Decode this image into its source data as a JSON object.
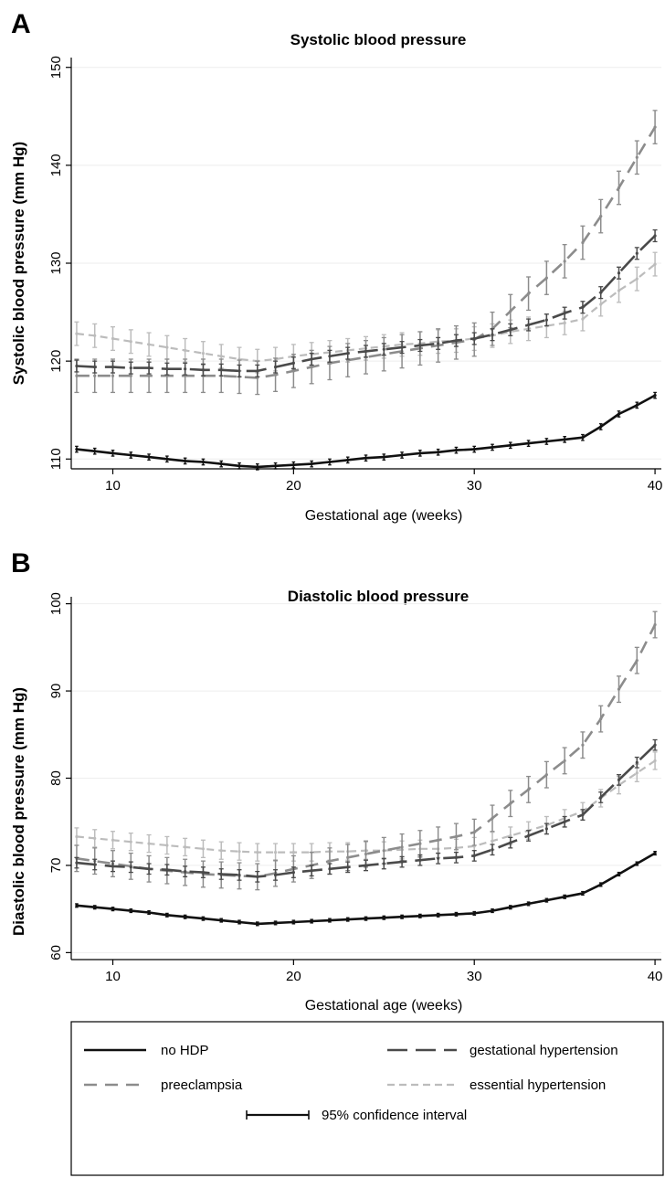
{
  "chart_data": [
    {
      "type": "line",
      "panel": "A",
      "title": "Systolic blood pressure",
      "xlabel": "Gestational age (weeks)",
      "ylabel": "Systolic blood pressure (mm Hg)",
      "xlim": [
        8,
        40
      ],
      "ylim": [
        109,
        151
      ],
      "xticks": [
        10,
        20,
        30,
        40
      ],
      "yticks": [
        110,
        120,
        130,
        140,
        150
      ],
      "grid": true,
      "x": [
        8,
        9,
        10,
        11,
        12,
        13,
        14,
        15,
        16,
        17,
        18,
        19,
        20,
        21,
        22,
        23,
        24,
        25,
        26,
        27,
        28,
        29,
        30,
        31,
        32,
        33,
        34,
        35,
        36,
        37,
        38,
        39,
        40
      ],
      "series": [
        {
          "name": "no HDP",
          "color": "#111111",
          "dash": "solid",
          "ci": 0.3,
          "values": [
            111.0,
            110.8,
            110.6,
            110.4,
            110.2,
            110.0,
            109.8,
            109.7,
            109.5,
            109.3,
            109.2,
            109.3,
            109.4,
            109.5,
            109.7,
            109.9,
            110.1,
            110.2,
            110.4,
            110.6,
            110.7,
            110.9,
            111.0,
            111.2,
            111.4,
            111.6,
            111.8,
            112.0,
            112.2,
            113.3,
            114.6,
            115.5,
            116.5
          ]
        },
        {
          "name": "gestational hypertension",
          "color": "#4a4a4a",
          "dash": "longdash",
          "ci": 0.6,
          "values": [
            119.5,
            119.4,
            119.4,
            119.3,
            119.3,
            119.2,
            119.2,
            119.1,
            119.1,
            119.0,
            119.0,
            119.4,
            119.8,
            120.2,
            120.5,
            120.8,
            121.0,
            121.2,
            121.4,
            121.6,
            121.8,
            122.1,
            122.3,
            122.7,
            123.2,
            123.7,
            124.2,
            124.9,
            125.5,
            127.0,
            129.0,
            131.0,
            132.8
          ]
        },
        {
          "name": "preeclampsia",
          "color": "#8c8c8c",
          "dash": "dash",
          "ci": 1.7,
          "values": [
            118.5,
            118.5,
            118.5,
            118.5,
            118.5,
            118.5,
            118.5,
            118.5,
            118.5,
            118.4,
            118.3,
            118.6,
            119.0,
            119.4,
            119.8,
            120.1,
            120.4,
            120.7,
            121.0,
            121.3,
            121.6,
            121.9,
            122.2,
            123.3,
            125.1,
            126.9,
            128.5,
            130.2,
            132.1,
            134.8,
            137.7,
            140.8,
            143.9
          ]
        },
        {
          "name": "essential hypertension",
          "color": "#bcbcbc",
          "dash": "shortdash",
          "ci": 1.2,
          "values": [
            122.8,
            122.6,
            122.3,
            122.0,
            121.7,
            121.4,
            121.1,
            120.8,
            120.5,
            120.2,
            120.0,
            120.2,
            120.5,
            120.7,
            120.9,
            121.1,
            121.3,
            121.5,
            121.7,
            121.8,
            122.0,
            122.1,
            122.3,
            122.6,
            123.0,
            123.3,
            123.6,
            123.9,
            124.3,
            125.8,
            127.2,
            128.4,
            129.9
          ]
        }
      ]
    },
    {
      "type": "line",
      "panel": "B",
      "title": "Diastolic blood pressure",
      "xlabel": "Gestational age (weeks)",
      "ylabel": "Diastolic blood pressure (mm Hg)",
      "xlim": [
        8,
        40
      ],
      "ylim": [
        59.2,
        100.8
      ],
      "xticks": [
        10,
        20,
        30,
        40
      ],
      "yticks": [
        60,
        70,
        80,
        90,
        100
      ],
      "grid": true,
      "x": [
        8,
        9,
        10,
        11,
        12,
        13,
        14,
        15,
        16,
        17,
        18,
        19,
        20,
        21,
        22,
        23,
        24,
        25,
        26,
        27,
        28,
        29,
        30,
        31,
        32,
        33,
        34,
        35,
        36,
        37,
        38,
        39,
        40
      ],
      "series": [
        {
          "name": "no HDP",
          "color": "#111111",
          "dash": "solid",
          "ci": 0.2,
          "values": [
            65.4,
            65.2,
            65.0,
            64.8,
            64.6,
            64.3,
            64.1,
            63.9,
            63.7,
            63.5,
            63.3,
            63.4,
            63.5,
            63.6,
            63.7,
            63.8,
            63.9,
            64.0,
            64.1,
            64.2,
            64.3,
            64.4,
            64.5,
            64.8,
            65.2,
            65.6,
            66.0,
            66.4,
            66.8,
            67.8,
            69.0,
            70.2,
            71.4
          ]
        },
        {
          "name": "gestational hypertension",
          "color": "#4a4a4a",
          "dash": "longdash",
          "ci": 0.6,
          "values": [
            70.3,
            70.1,
            69.9,
            69.8,
            69.6,
            69.5,
            69.3,
            69.2,
            69.0,
            68.9,
            68.7,
            68.9,
            69.2,
            69.4,
            69.6,
            69.8,
            70.0,
            70.2,
            70.4,
            70.6,
            70.8,
            70.9,
            71.1,
            71.8,
            72.6,
            73.4,
            74.2,
            75.0,
            75.8,
            77.8,
            79.8,
            81.8,
            83.8
          ]
        },
        {
          "name": "preeclampsia",
          "color": "#8c8c8c",
          "dash": "dash",
          "ci": 1.5,
          "values": [
            70.8,
            70.5,
            70.2,
            69.9,
            69.6,
            69.4,
            69.2,
            69.0,
            68.9,
            68.8,
            68.7,
            69.1,
            69.6,
            70.0,
            70.5,
            70.9,
            71.3,
            71.7,
            72.1,
            72.5,
            72.9,
            73.3,
            73.8,
            75.4,
            77.1,
            78.7,
            80.4,
            82.0,
            83.8,
            86.8,
            90.2,
            93.5,
            97.6
          ]
        },
        {
          "name": "essential hypertension",
          "color": "#bcbcbc",
          "dash": "shortdash",
          "ci": 1.0,
          "values": [
            73.3,
            73.1,
            72.9,
            72.7,
            72.5,
            72.3,
            72.1,
            71.9,
            71.7,
            71.6,
            71.5,
            71.5,
            71.5,
            71.5,
            71.6,
            71.6,
            71.7,
            71.7,
            71.8,
            71.9,
            71.9,
            72.0,
            72.2,
            72.8,
            73.4,
            74.0,
            74.6,
            75.4,
            76.2,
            77.7,
            79.2,
            80.6,
            82.0
          ]
        }
      ]
    }
  ],
  "legend": {
    "entries": [
      {
        "label": "no HDP",
        "color": "#111111",
        "dash": "solid"
      },
      {
        "label": "gestational hypertension",
        "color": "#4a4a4a",
        "dash": "longdash"
      },
      {
        "label": "preeclampsia",
        "color": "#8c8c8c",
        "dash": "dash"
      },
      {
        "label": "essential hypertension",
        "color": "#bcbcbc",
        "dash": "shortdash"
      }
    ],
    "ci_label": "95% confidence interval"
  }
}
